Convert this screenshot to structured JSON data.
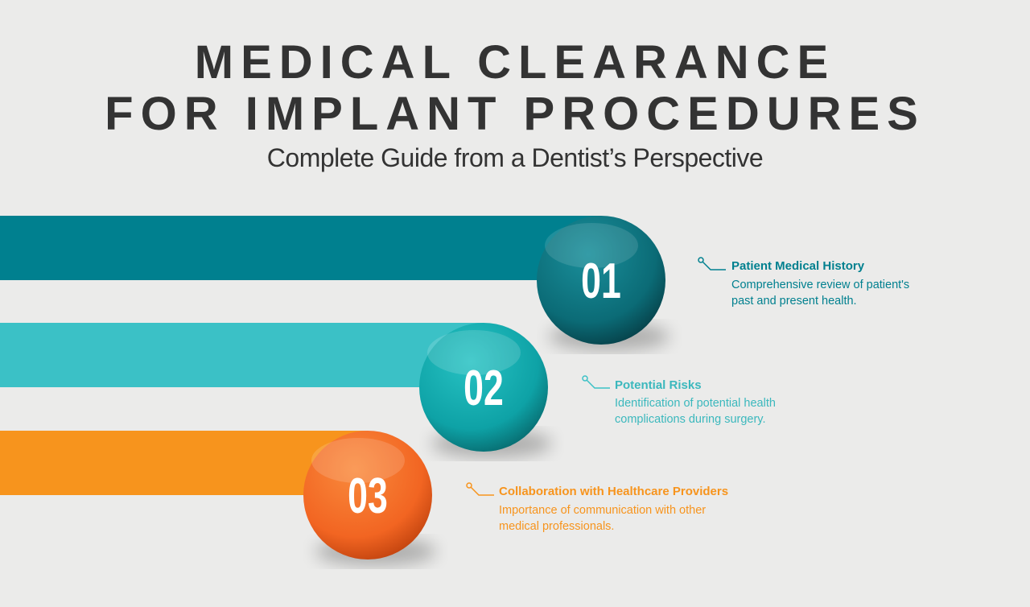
{
  "header": {
    "title_lines": [
      "MEDICAL CLEARANCE",
      "FOR IMPLANT PROCEDURES"
    ],
    "subtitle": "Complete Guide from a Dentist’s Perspective"
  },
  "items": [
    {
      "number": "01",
      "title": "Patient Medical History",
      "description": "Comprehensive review of patient's past and present health."
    },
    {
      "number": "02",
      "title": "Potential Risks",
      "description": "Identification of potential health complications during surgery."
    },
    {
      "number": "03",
      "title": "Collaboration with Healthcare Providers",
      "description": "Importance of communication with other medical professionals."
    }
  ]
}
